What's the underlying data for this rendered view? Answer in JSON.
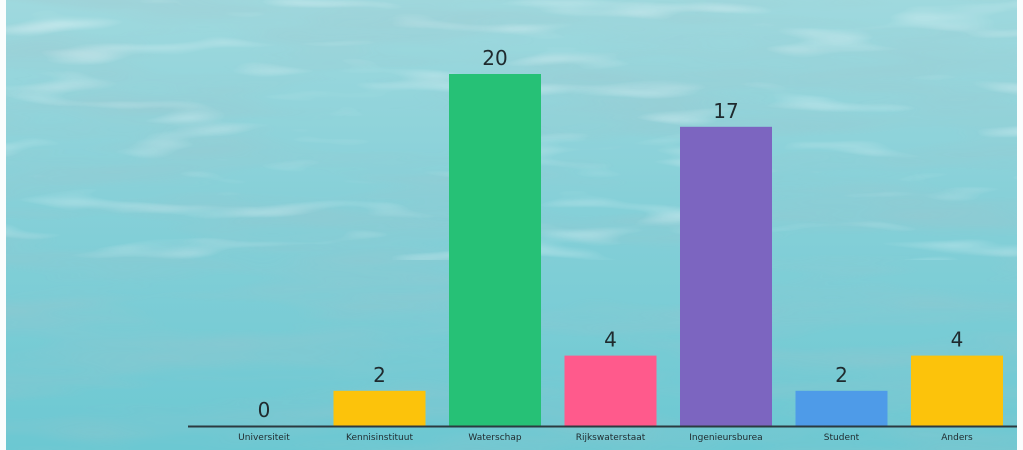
{
  "chart_data": {
    "type": "bar",
    "categories": [
      "Universiteit",
      "Kennisinstituut",
      "Waterschap",
      "Rijkswaterstaat",
      "Ingenieursburea",
      "Student",
      "Anders"
    ],
    "values": [
      0,
      2,
      20,
      4,
      17,
      2,
      4
    ],
    "colors": [
      "#f4c20d",
      "#fcc30b",
      "#26c176",
      "#ff5a8c",
      "#7c65c0",
      "#4e9be8",
      "#fcc30b"
    ],
    "ylim": [
      0,
      20
    ],
    "grid": false,
    "legend": "none"
  },
  "background": {
    "type": "underwater-photo",
    "color": "#7fd1d9"
  },
  "axis_color": "#2b3a40"
}
